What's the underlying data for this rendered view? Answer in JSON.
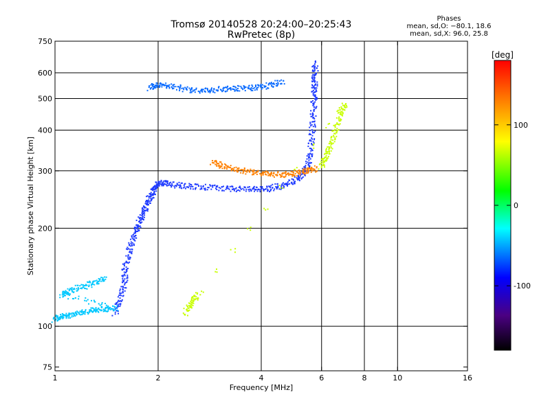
{
  "header": {
    "title_line1": "Tromsø 20140528 20:24:00–20:25:43",
    "title_line2": "RwPretec (8p)",
    "stats_title": "Phases",
    "stats_o": "mean, sd,O: −80.1, 18.6",
    "stats_x": "mean, sd,X: 96.0, 25.8"
  },
  "chart_data": {
    "type": "scatter",
    "title": "Tromsø 20140528 20:24:00–20:25:43",
    "subtitle": "RwPretec (8p)",
    "xlabel": "Frequency [MHz]",
    "ylabel": "Stationary phase Virtual Height [km]",
    "x_scale": "log",
    "y_scale": "log",
    "xlim": [
      1,
      16
    ],
    "ylim": [
      73,
      750
    ],
    "x_ticks": [
      1,
      2,
      4,
      6,
      8,
      10,
      16
    ],
    "y_ticks": [
      75,
      100,
      200,
      300,
      400,
      500,
      600,
      750
    ],
    "grid_x": [
      2,
      4,
      6,
      8,
      10
    ],
    "grid_y": [
      100,
      200,
      300,
      400,
      500,
      600
    ],
    "colorbar": {
      "label": "[deg]",
      "range": [
        -180,
        180
      ],
      "ticks": [
        -100,
        0,
        100
      ]
    },
    "series": [
      {
        "color": "#1f3bff",
        "phase_deg": -85,
        "points": [
          [
            1.5,
            110
          ],
          [
            1.55,
            120
          ],
          [
            1.6,
            135
          ],
          [
            1.6,
            150
          ],
          [
            1.65,
            170
          ],
          [
            1.7,
            190
          ],
          [
            1.75,
            205
          ],
          [
            1.8,
            220
          ],
          [
            1.85,
            235
          ],
          [
            1.9,
            250
          ],
          [
            1.95,
            265
          ],
          [
            2.0,
            275
          ],
          [
            2.1,
            275
          ],
          [
            2.3,
            270
          ],
          [
            2.6,
            268
          ],
          [
            3.0,
            266
          ],
          [
            3.4,
            264
          ],
          [
            3.8,
            263
          ],
          [
            4.2,
            264
          ],
          [
            4.6,
            270
          ],
          [
            5.0,
            280
          ],
          [
            5.3,
            295
          ],
          [
            5.5,
            320
          ],
          [
            5.6,
            360
          ],
          [
            5.65,
            420
          ],
          [
            5.7,
            480
          ],
          [
            5.72,
            530
          ],
          [
            5.74,
            580
          ],
          [
            5.75,
            640
          ]
        ]
      },
      {
        "color": "#00c8ff",
        "phase_deg": -40,
        "points": [
          [
            1.0,
            105
          ],
          [
            1.05,
            107
          ],
          [
            1.1,
            108
          ],
          [
            1.2,
            110
          ],
          [
            1.3,
            112
          ],
          [
            1.4,
            113
          ],
          [
            1.5,
            114
          ],
          [
            1.05,
            125
          ],
          [
            1.1,
            128
          ],
          [
            1.2,
            132
          ],
          [
            1.3,
            136
          ],
          [
            1.4,
            140
          ]
        ]
      },
      {
        "color": "#0a6bff",
        "phase_deg": -70,
        "points": [
          [
            1.9,
            540
          ],
          [
            2.0,
            550
          ],
          [
            2.2,
            545
          ],
          [
            2.5,
            530
          ],
          [
            2.8,
            528
          ],
          [
            3.1,
            535
          ],
          [
            3.4,
            538
          ],
          [
            3.8,
            540
          ],
          [
            4.2,
            548
          ],
          [
            4.6,
            560
          ]
        ]
      },
      {
        "color": "#ff8000",
        "phase_deg": 140,
        "points": [
          [
            2.9,
            320
          ],
          [
            3.1,
            310
          ],
          [
            3.4,
            302
          ],
          [
            3.8,
            297
          ],
          [
            4.2,
            293
          ],
          [
            4.6,
            292
          ],
          [
            5.0,
            295
          ],
          [
            5.4,
            300
          ],
          [
            5.8,
            305
          ]
        ]
      },
      {
        "color": "#c8ff00",
        "phase_deg": 95,
        "points": [
          [
            6.0,
            310
          ],
          [
            6.2,
            330
          ],
          [
            6.4,
            360
          ],
          [
            6.6,
            400
          ],
          [
            6.8,
            450
          ],
          [
            7.0,
            480
          ],
          [
            2.4,
            110
          ],
          [
            2.5,
            118
          ],
          [
            2.6,
            125
          ]
        ]
      }
    ]
  }
}
